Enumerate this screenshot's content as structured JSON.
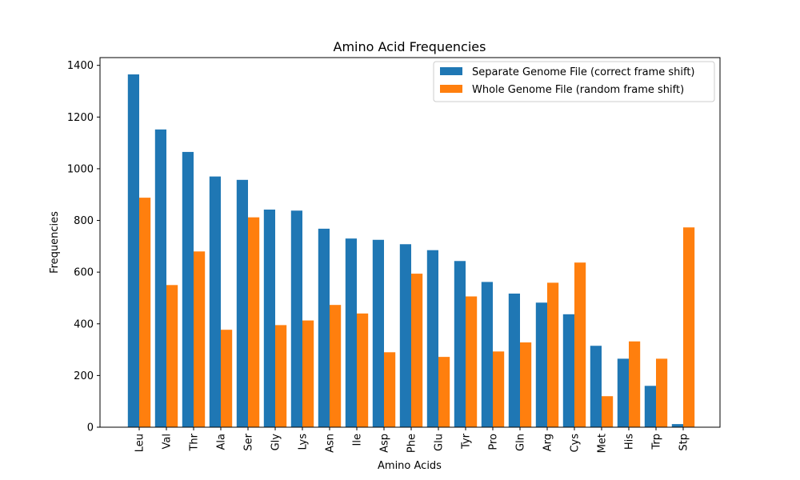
{
  "chart_data": {
    "type": "bar",
    "title": "Amino Acid Frequencies",
    "xlabel": "Amino Acids",
    "ylabel": "Frequencies",
    "ylim": [
      0,
      1430
    ],
    "yticks": [
      0,
      200,
      400,
      600,
      800,
      1000,
      1200,
      1400
    ],
    "categories": [
      "Leu",
      "Val",
      "Thr",
      "Ala",
      "Ser",
      "Gly",
      "Lys",
      "Asn",
      "Ile",
      "Asp",
      "Phe",
      "Glu",
      "Tyr",
      "Pro",
      "Gln",
      "Arg",
      "Cys",
      "Met",
      "His",
      "Trp",
      "Stp"
    ],
    "series": [
      {
        "name": "Separate Genome File (correct frame shift)",
        "color": "#1f77b4",
        "values": [
          1365,
          1152,
          1065,
          970,
          957,
          842,
          838,
          768,
          730,
          725,
          708,
          685,
          643,
          562,
          517,
          482,
          437,
          315,
          265,
          160,
          12
        ]
      },
      {
        "name": "Whole Genome File (random frame shift)",
        "color": "#ff7f0e",
        "values": [
          888,
          550,
          680,
          377,
          812,
          395,
          413,
          473,
          440,
          290,
          594,
          272,
          506,
          293,
          328,
          559,
          637,
          120,
          332,
          265,
          773
        ]
      }
    ],
    "legend_position": "top-right",
    "grid": false
  }
}
